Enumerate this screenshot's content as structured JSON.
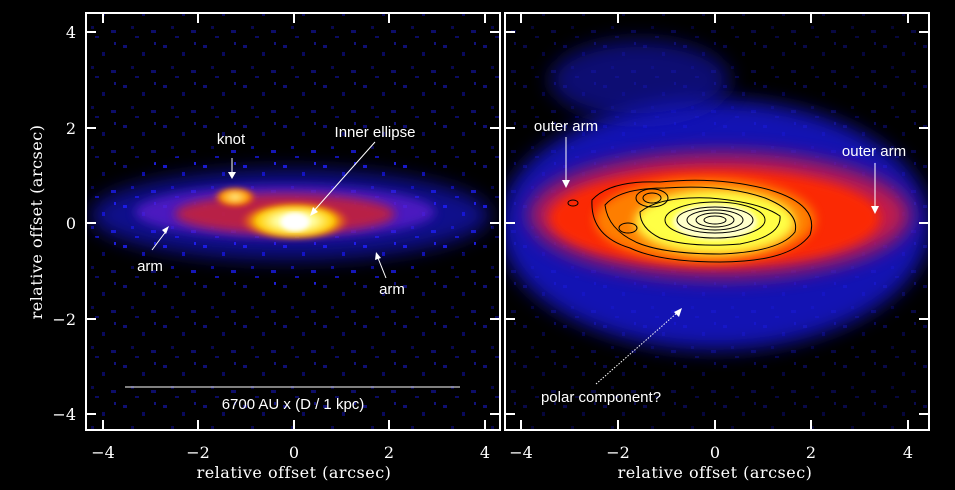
{
  "x_axis_title": "relative offset (arcsec)",
  "y_axis_title": "relative offset (arcsec)",
  "x_ticks": [
    "−4",
    "−2",
    "0",
    "2",
    "4"
  ],
  "y_ticks": [
    "4",
    "2",
    "0",
    "−2",
    "−4"
  ],
  "left_panel": {
    "labels": {
      "knot": "knot",
      "inner_ellipse": "Inner ellipse",
      "arm_left": "arm",
      "arm_right": "arm",
      "scale_bar": "6700 AU x (D / 1 kpc)"
    }
  },
  "right_panel": {
    "labels": {
      "outer_arm_left": "outer arm",
      "outer_arm_right": "outer arm",
      "polar": "polar component?"
    }
  },
  "colors": {
    "background": "#000000",
    "faint": "#1a1aff",
    "mid": "#ff2200",
    "bright": "#ffff55",
    "core": "#ffffff"
  }
}
